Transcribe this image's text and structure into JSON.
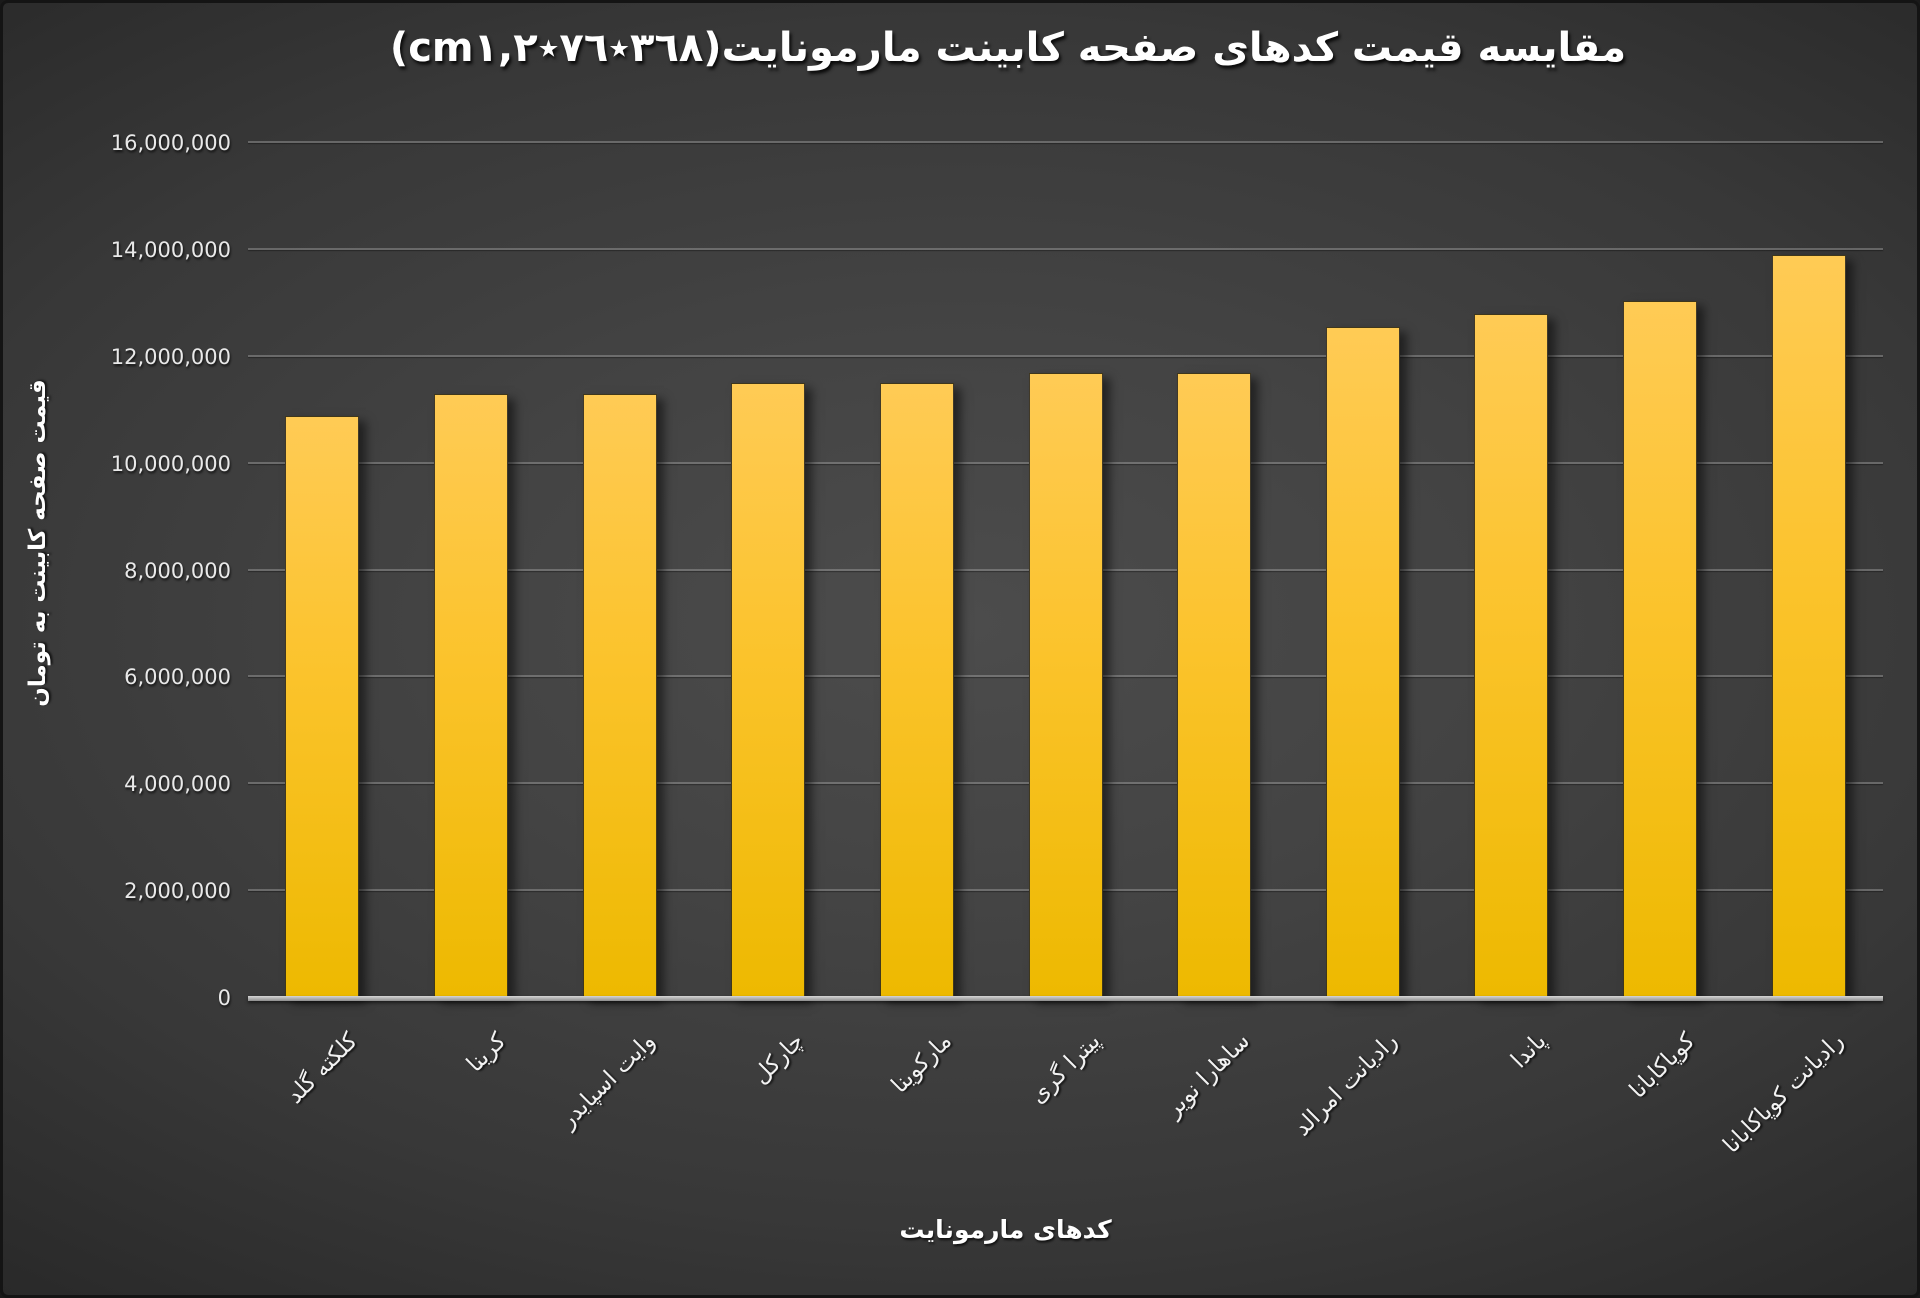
{
  "chart_data": {
    "type": "bar",
    "title": "مقایسه قیمت کدهای صفحه کابینت مارمونایت(٣٦٨٭٧٦٭cm١,٢)",
    "xlabel": "کدهای مارمونایت",
    "ylabel": "قیمت صفحه کابینت به تومان",
    "categories": [
      "کلکته گلد",
      "کرینا",
      "وایت اسپایدر",
      "چارکل",
      "مارکوینا",
      "پیترا گری",
      "ساهارا نویر",
      "رادیانت امرالد",
      "پاندا",
      "کوپاکابانا",
      "رادیانت کوپاکابانا"
    ],
    "values": [
      10900000,
      11300000,
      11300000,
      11500000,
      11500000,
      11700000,
      11700000,
      12550000,
      12800000,
      13050000,
      13900000
    ],
    "ylim": [
      0,
      16000000
    ],
    "ytick_step": 2000000,
    "ytick_labels": [
      "0",
      "2,000,000",
      "4,000,000",
      "6,000,000",
      "8,000,000",
      "10,000,000",
      "12,000,000",
      "14,000,000",
      "16,000,000"
    ],
    "grid": true,
    "legend": "none",
    "colors": {
      "bar_top": "#FFCB55",
      "bar_bottom": "#EDB900",
      "background_center": "#4C4C4C",
      "background_edge": "#1F1F1F",
      "gridline": "#AAAAAA",
      "axis_line": "#B0B0B0",
      "text": "#FFFFFF"
    }
  }
}
